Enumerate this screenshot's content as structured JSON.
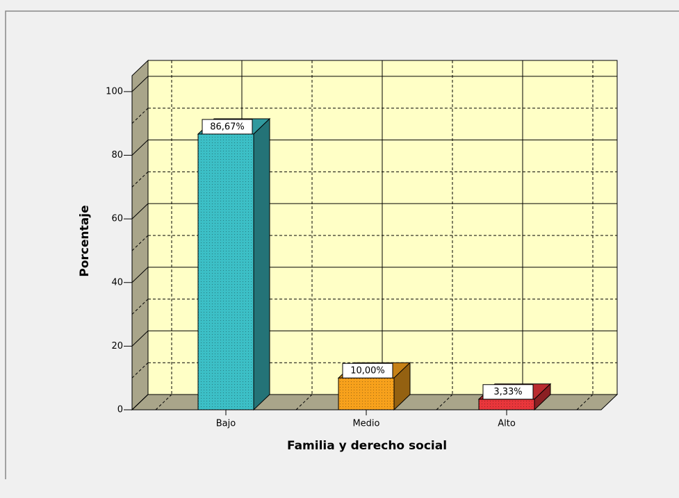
{
  "chart_data": {
    "type": "bar3d",
    "x_label": "Familia y derecho social",
    "y_label": "Porcentaje",
    "categories": [
      "Bajo",
      "Medio",
      "Alto"
    ],
    "values": [
      86.67,
      10.0,
      3.33
    ],
    "value_labels": [
      "86,67%",
      "10,00%",
      "3,33%"
    ],
    "colors": [
      "#3cbfc6",
      "#f7a11c",
      "#e8363b"
    ],
    "ylim": [
      0,
      105
    ],
    "yticks": [
      0,
      20,
      40,
      60,
      80,
      100
    ],
    "grid": true
  }
}
